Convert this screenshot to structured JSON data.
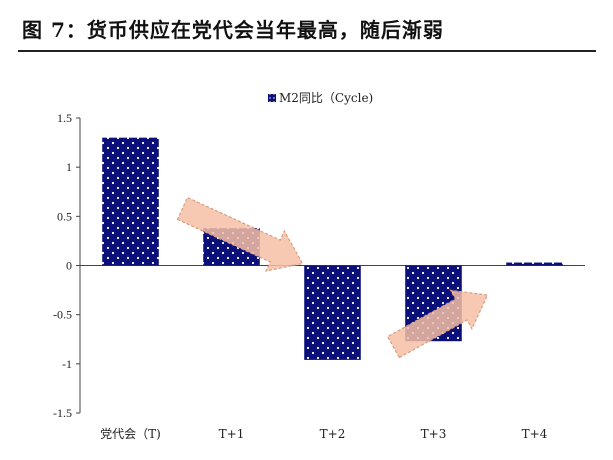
{
  "figure": {
    "title": "图 7：货币供应在党代会当年最高，随后渐弱"
  },
  "chart_data": {
    "type": "bar",
    "categories": [
      "党代会（T)",
      "T+1",
      "T+2",
      "T+3",
      "T+4"
    ],
    "series": [
      {
        "name": "M2同比（Cycle)",
        "values": [
          1.3,
          0.38,
          -0.96,
          -0.77,
          0.03
        ]
      }
    ],
    "ylim": [
      -1.5,
      1.5
    ],
    "yticks": [
      1.5,
      1,
      0.5,
      0,
      -0.5,
      -1,
      -1.5
    ],
    "ytick_labels": [
      "1.5",
      "1",
      "0.5",
      "0",
      "-0.5",
      "-1",
      "-1.5"
    ],
    "legend_position": "top-center",
    "grid": false,
    "colors": {
      "bar": "#0a0f7a",
      "dots": "#ffffff",
      "arrow_fill": "#f6c0a6",
      "arrow_stroke": "#d89c80"
    }
  }
}
